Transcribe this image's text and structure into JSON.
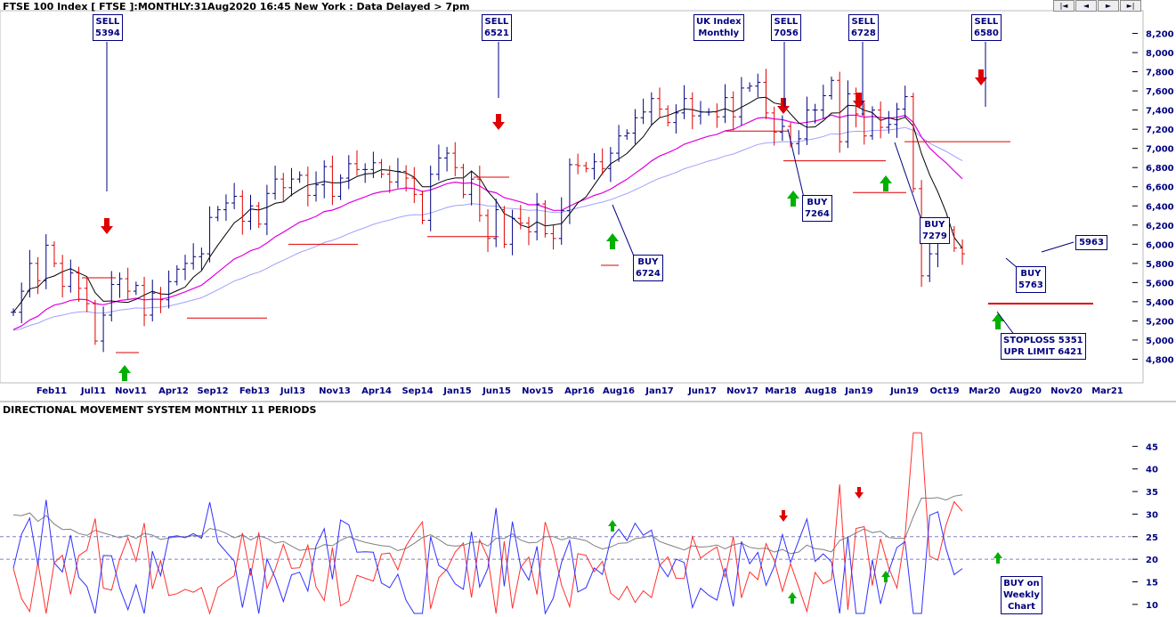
{
  "header": {
    "title": "FTSE 100 Index [ FTSE ]:MONTHLY:31Aug2020 16:45 New York : Data Delayed > 7pm",
    "lower_title": "DIRECTIONAL MOVEMENT SYSTEM MONTHLY 11 PERIODS",
    "nav": [
      "|◄",
      "◄",
      "►",
      "►|"
    ]
  },
  "colors": {
    "bars": "#000080",
    "red": "#e00000",
    "green": "#00b000",
    "ma_short": "#000000",
    "ma_mid": "#e000e0",
    "ma_long": "#a0a0ff",
    "plus_di": "#3030ff",
    "minus_di": "#ff3030",
    "adx": "#808080",
    "grid": "#c8c8c8"
  },
  "chart_data": [
    {
      "type": "ohlc",
      "ylim": [
        4600,
        8400
      ],
      "y_ticks": [
        4800,
        5000,
        5200,
        5400,
        5600,
        5800,
        6000,
        6200,
        6400,
        6600,
        6800,
        7000,
        7200,
        7400,
        7600,
        7800,
        8000,
        8200
      ],
      "y_tick_labels": [
        "4,800",
        "5,000",
        "5,200",
        "5,400",
        "5,600",
        "5,800",
        "6,000",
        "6,200",
        "6,400",
        "6,600",
        "6,800",
        "7,000",
        "7,200",
        "7,400",
        "7,600",
        "7,800",
        "8,000",
        "8,200"
      ],
      "x_labels": [
        "Feb11",
        "Jul11",
        "Nov11",
        "Apr12",
        "Sep12",
        "Feb13",
        "Jul13",
        "Nov13",
        "Apr14",
        "Sep14",
        "Jan15",
        "Jun15",
        "Nov15",
        "Apr16",
        "Aug16",
        "Jan17",
        "Jun17",
        "Nov17",
        "Mar18",
        "Aug18",
        "Jan19",
        "Jun19",
        "Oct19",
        "Mar20",
        "Aug20",
        "Nov20",
        "Mar21"
      ],
      "close": [
        5290,
        5510,
        5800,
        5620,
        5990,
        5800,
        5560,
        5700,
        5540,
        5380,
        4990,
        5260,
        5580,
        5640,
        5510,
        5570,
        5260,
        5490,
        5420,
        5610,
        5740,
        5800,
        5870,
        5900,
        6280,
        6360,
        6430,
        6500,
        6240,
        6400,
        6210,
        6530,
        6680,
        6590,
        6680,
        6720,
        6510,
        6620,
        6810,
        6500,
        6690,
        6840,
        6780,
        6780,
        6850,
        6730,
        6650,
        6760,
        6690,
        6520,
        6250,
        6730,
        6900,
        6950,
        6800,
        6520,
        6680,
        6300,
        6060,
        6360,
        6000,
        6270,
        6220,
        6130,
        6420,
        6110,
        6060,
        6350,
        6830,
        6820,
        6790,
        6860,
        6790,
        6950,
        7130,
        7160,
        7320,
        7380,
        7520,
        7410,
        7270,
        7370,
        7520,
        7340,
        7380,
        7380,
        7330,
        7530,
        7330,
        7630,
        7650,
        7690,
        7370,
        7170,
        7230,
        7050,
        7100,
        7400,
        7400,
        7550,
        7710,
        7070,
        7570,
        7360,
        7130,
        7400,
        7220,
        7250,
        7410,
        7540,
        6580,
        5670,
        5900,
        6170,
        6150,
        5960,
        5900
      ],
      "sell_signals": [
        {
          "label": "SELL",
          "value": "5394"
        },
        {
          "label": "SELL",
          "value": "6521"
        },
        {
          "label": "SELL",
          "value": "7056"
        },
        {
          "label": "SELL",
          "value": "6728"
        },
        {
          "label": "SELL",
          "value": "6580"
        }
      ],
      "buy_signals": [
        {
          "label": "BUY",
          "value": "6724"
        },
        {
          "label": "BUY",
          "value": "7264"
        },
        {
          "label": "BUY",
          "value": "7279"
        },
        {
          "label": "BUY",
          "value": "5763"
        }
      ],
      "annotations": [
        "UK Index\nMonthly",
        "5963",
        "STOPLOSS 5351\nUPR LIMIT 6421"
      ]
    },
    {
      "type": "line",
      "title": "DIRECTIONAL MOVEMENT SYSTEM MONTHLY 11 PERIODS",
      "ylim": [
        8,
        50
      ],
      "y_ticks": [
        10,
        15,
        20,
        25,
        30,
        35,
        40,
        45
      ],
      "ref_lines": [
        20,
        25
      ],
      "annotations": [
        "BUY on\nWeekly\nChart"
      ]
    }
  ]
}
